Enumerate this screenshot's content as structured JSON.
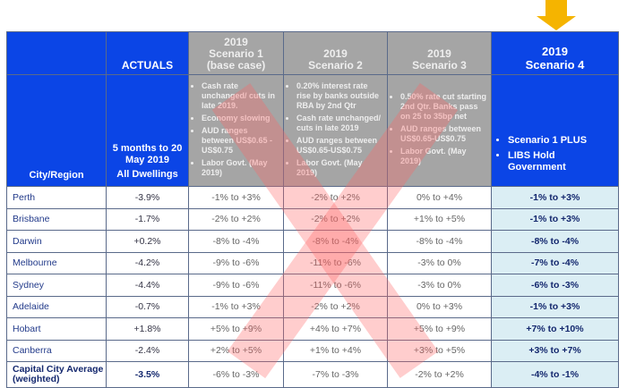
{
  "header": {
    "actuals": "ACTUALS",
    "city_region": "City/Region",
    "actuals_sub": [
      "5 months to 20 May 2019",
      "All Dwellings"
    ],
    "scenarios": [
      {
        "title": [
          "2019",
          "Scenario 1",
          "(base case)"
        ],
        "bullets": [
          "Cash rate unchanged/ cuts in late 2019.",
          "Economy slowing",
          "AUD ranges between US$0.65 - US$0.75",
          "Labor Govt. (May 2019)"
        ]
      },
      {
        "title": [
          "2019",
          "Scenario 2"
        ],
        "bullets": [
          "0.20% interest rate rise by banks outside RBA by 2nd Qtr",
          "Cash rate unchanged/ cuts in late 2019",
          "AUD ranges between US$0.65-US$0.75",
          "Labor Govt. (May 2019)"
        ]
      },
      {
        "title": [
          "2019",
          "Scenario 3"
        ],
        "bullets": [
          "0.50% rate cut starting 2nd Qtr. Banks pass on 25 to 35bp net",
          "AUD ranges between US$0.65-US$0.75",
          "Labor Govt. (May 2019)"
        ]
      },
      {
        "title": [
          "2019",
          "Scenario 4"
        ],
        "bullets": [
          "Scenario 1 PLUS",
          "LIBS Hold Government"
        ]
      }
    ]
  },
  "rows": [
    {
      "city": "Perth",
      "actual": "-3.9%",
      "s": [
        "-1% to +3%",
        "-2% to +2%",
        "0% to +4%",
        "-1% to +3%"
      ]
    },
    {
      "city": "Brisbane",
      "actual": "-1.7%",
      "s": [
        "-2% to +2%",
        "-2% to +2%",
        "+1% to +5%",
        "-1% to +3%"
      ]
    },
    {
      "city": "Darwin",
      "actual": "+0.2%",
      "s": [
        "-8% to -4%",
        "-8% to -4%",
        "-8% to -4%",
        "-8% to -4%"
      ]
    },
    {
      "city": "Melbourne",
      "actual": "-4.2%",
      "s": [
        "-9% to -6%",
        "-11% to -6%",
        "-3% to 0%",
        "-7% to -4%"
      ]
    },
    {
      "city": "Sydney",
      "actual": "-4.4%",
      "s": [
        "-9% to -6%",
        "-11% to -6%",
        "-3% to 0%",
        "-6% to -3%"
      ]
    },
    {
      "city": "Adelaide",
      "actual": "-0.7%",
      "s": [
        "-1% to +3%",
        "-2% to +2%",
        "0% to +3%",
        "-1% to +3%"
      ]
    },
    {
      "city": "Hobart",
      "actual": "+1.8%",
      "s": [
        "+5% to +9%",
        "+4% to +7%",
        "+5% to +9%",
        "+7% to +10%"
      ]
    },
    {
      "city": "Canberra",
      "actual": "-2.4%",
      "s": [
        "+2% to +5%",
        "+1% to +4%",
        "+3% to +5%",
        "+3% to +7%"
      ]
    },
    {
      "city": "Capital City Average (weighted)",
      "actual": "-3.5%",
      "s": [
        "-6% to -3%",
        "-7% to -3%",
        "-2% to +2%",
        "-4% to -1%"
      ]
    }
  ],
  "icons": {
    "arrow": "down-arrow-icon",
    "overlay": "cross-out-x-icon"
  },
  "colors": {
    "header_blue": "#0b45e6",
    "scenario_gray": "#a5a5a5",
    "highlight": "#dbeef4",
    "arrow": "#f5b400",
    "x_mark": "#ff6e6e"
  }
}
